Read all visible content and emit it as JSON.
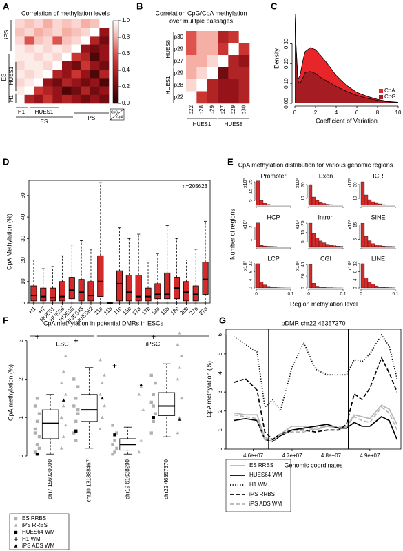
{
  "chart_data": [
    {
      "panel": "A",
      "type": "heatmap",
      "title": "Correlation of methylation levels",
      "row_labels": [
        "iPS",
        "ES",
        "HUES1",
        "H1"
      ],
      "col_labels": [
        "H1",
        "HUES1",
        "ES",
        "iPS"
      ],
      "legend_labels": [
        "CpG",
        "CpA"
      ],
      "matrix": [
        [
          0.9,
          0.85,
          0.9,
          0.8,
          0.9,
          0.85,
          0.9,
          0.8,
          0.85,
          1
        ],
        [
          0.85,
          0.9,
          0.8,
          0.85,
          0.9,
          0.8,
          0.85,
          0.9,
          1,
          0.3
        ],
        [
          0.9,
          0.6,
          0.85,
          0.9,
          0.6,
          0.85,
          0.9,
          1,
          0.4,
          0.2
        ],
        [
          0.95,
          0.9,
          0.95,
          0.9,
          0.95,
          0.9,
          1,
          0.3,
          0.2,
          0.3
        ],
        [
          0.95,
          0.95,
          0.9,
          0.95,
          0.9,
          1,
          0.5,
          0.4,
          0.1,
          0.3
        ],
        [
          0.9,
          0.95,
          0.95,
          0.9,
          1,
          0.3,
          0.2,
          0.5,
          0.3,
          0.2
        ],
        [
          0.95,
          0.9,
          0.95,
          1,
          0.4,
          0.3,
          0.5,
          0.3,
          0.1,
          0.4
        ],
        [
          0.9,
          0.95,
          1,
          0.3,
          0.2,
          0.4,
          0.3,
          0.2,
          0.3,
          0.1
        ],
        [
          0.95,
          1,
          0.5,
          0.4,
          0.3,
          0.1,
          0.2,
          0.4,
          0.2,
          0.3
        ],
        [
          1,
          0.4,
          0.3,
          0.5,
          0.3,
          0.4,
          0.3,
          0.2,
          0.3,
          0.2
        ]
      ],
      "clim": [
        0,
        1
      ],
      "cticks": [
        {
          "value": 0,
          "label": "0.0"
        },
        {
          "value": 0.2,
          "label": "0.2"
        },
        {
          "value": 0.4,
          "label": "0.4"
        },
        {
          "value": 0.6,
          "label": "0.6"
        },
        {
          "value": 0.8,
          "label": "0.8"
        },
        {
          "value": 1,
          "label": "1.0"
        }
      ]
    },
    {
      "panel": "B",
      "type": "heatmap",
      "title": "Correlation CpG/CpA methylation",
      "subtitle": "over mulitple passages",
      "rows": [
        "p30",
        "p29",
        "p27",
        "p29",
        "p28",
        "p22"
      ],
      "columns": [
        "p22",
        "p28",
        "p29",
        "p27",
        "p29",
        "p30"
      ],
      "row_groups": [
        "HUES8",
        "HUES1"
      ],
      "col_groups": [
        "HUES1",
        "HUES8"
      ],
      "matrix": [
        [
          0.6,
          0.8,
          0.8,
          0.4,
          0.5,
          1
        ],
        [
          0.6,
          0.8,
          0.8,
          0.5,
          1,
          0.5
        ],
        [
          0.8,
          0.8,
          0.9,
          1,
          0.4,
          0.3
        ],
        [
          0.8,
          0.9,
          1,
          0.2,
          0.4,
          0.4
        ],
        [
          0.9,
          1,
          0.4,
          0.3,
          0.3,
          0.4
        ],
        [
          1,
          0.5,
          0.4,
          0.3,
          0.3,
          0.4
        ]
      ]
    },
    {
      "panel": "C",
      "type": "density",
      "xlabel": "Coefficient of Variation",
      "ylabel": "Density",
      "x": [
        0,
        0.1,
        0.3,
        0.5,
        0.8,
        1,
        1.5,
        2,
        2.5,
        3,
        4,
        5,
        6,
        7,
        8,
        9,
        10
      ],
      "series": [
        {
          "name": "CpA",
          "color": "#e8262a",
          "values": [
            0.45,
            0.3,
            0.12,
            0.14,
            0.22,
            0.26,
            0.28,
            0.27,
            0.24,
            0.21,
            0.14,
            0.09,
            0.055,
            0.035,
            0.02,
            0.01,
            0.005
          ]
        },
        {
          "name": "CpG",
          "color": "#a51c22",
          "values": [
            0.45,
            0.3,
            0.11,
            0.1,
            0.13,
            0.155,
            0.16,
            0.15,
            0.13,
            0.115,
            0.085,
            0.06,
            0.04,
            0.025,
            0.015,
            0.008,
            0.004
          ]
        }
      ],
      "xlim": [
        0,
        10
      ],
      "xticks": [
        0,
        2,
        4,
        6,
        8,
        10
      ],
      "ylim": [
        0,
        0.45
      ],
      "yticks": [
        {
          "value": 0,
          "label": "0.00"
        },
        {
          "value": 0.1,
          "label": "0.10"
        },
        {
          "value": 0.2,
          "label": "0.20"
        },
        {
          "value": 0.3,
          "label": "0.30"
        }
      ],
      "legend": "bottom-right"
    },
    {
      "panel": "D",
      "type": "box",
      "ylabel": "CpA Methylation (%)",
      "annotation": "n=205623",
      "categories": [
        "H1",
        "H7",
        "HUES1",
        "HUES6",
        "HUES8",
        "HUES45",
        "HUES62",
        "11a",
        "11b",
        "11c",
        "15b",
        "17a",
        "17b",
        "18a",
        "18b",
        "18c",
        "20b",
        "27b",
        "27e"
      ],
      "groups": [
        "ESC",
        "iPSC"
      ],
      "boxes": [
        [
          0,
          1,
          3.5,
          8,
          20
        ],
        [
          0,
          1,
          3,
          7,
          16
        ],
        [
          0,
          1,
          2.5,
          7,
          17
        ],
        [
          0,
          1,
          3,
          10,
          22
        ],
        [
          0,
          2,
          6,
          12,
          27
        ],
        [
          0,
          1,
          5,
          11,
          29
        ],
        [
          0,
          1,
          3.5,
          10,
          25
        ],
        [
          0,
          3,
          10,
          22,
          56
        ],
        [
          0,
          0,
          0,
          0,
          0.5
        ],
        [
          0,
          1,
          9,
          15,
          35
        ],
        [
          0,
          1,
          5,
          13,
          30
        ],
        [
          0,
          1,
          3,
          13,
          32
        ],
        [
          0,
          1,
          3,
          7,
          20
        ],
        [
          0,
          2,
          4,
          9,
          23
        ],
        [
          0,
          2,
          4,
          14,
          36
        ],
        [
          0,
          2,
          7,
          12,
          30
        ],
        [
          0,
          1,
          5,
          10,
          20
        ],
        [
          0,
          1,
          4,
          8,
          25
        ],
        [
          0,
          4,
          11,
          19,
          38
        ]
      ],
      "color": "#d42a2a",
      "ylim": [
        0,
        57
      ],
      "yticks": [
        0,
        10,
        20,
        30,
        40,
        50
      ]
    },
    {
      "panel": "E",
      "type": "histogram",
      "title": "CpA methylation distribution for various genomic regions",
      "ylabel": "Number of regions",
      "xlabel": "Region methylation level",
      "bins": [
        0,
        0.01,
        0.02,
        0.03,
        0.04,
        0.05,
        0.06,
        0.07,
        0.08,
        0.09,
        0.1
      ],
      "xlim": [
        0,
        0.1
      ],
      "xticks": [
        0,
        0.1
      ],
      "color": "#d42a2a",
      "panels": [
        {
          "name": "Promoter",
          "multiplier": "x10³",
          "ylim": [
            0,
            28
          ],
          "yticks": [
            5,
            15,
            25
          ],
          "counts": [
            26,
            5,
            2,
            1,
            0.6,
            0.3,
            0.2,
            0.1,
            0.05,
            0.02
          ]
        },
        {
          "name": "Exon",
          "multiplier": "x10³",
          "ylim": [
            0,
            38
          ],
          "yticks": [
            10,
            30
          ],
          "counts": [
            30,
            12,
            7,
            4,
            2.5,
            1.5,
            1,
            0.6,
            0.3,
            0.2
          ]
        },
        {
          "name": "ICR",
          "multiplier": "x10³",
          "ylim": [
            0,
            38
          ],
          "yticks": [
            10,
            30
          ],
          "counts": [
            34,
            15,
            8,
            5,
            3,
            2,
            1,
            0.5,
            0.3,
            0.2
          ]
        },
        {
          "name": "HCP",
          "multiplier": "x10³",
          "ylim": [
            0,
            4
          ],
          "yticks": [
            1,
            3
          ],
          "counts": [
            3.6,
            0.2,
            0.1,
            0.05,
            0.02,
            0.01,
            0,
            0,
            0,
            0
          ]
        },
        {
          "name": "Intron",
          "multiplier": "x10³",
          "ylim": [
            0,
            28
          ],
          "yticks": [
            5,
            15,
            25
          ],
          "counts": [
            25,
            14,
            9,
            6,
            4,
            2.5,
            1.5,
            1,
            0.5,
            0.3
          ]
        },
        {
          "name": "SINE",
          "multiplier": "x10³",
          "ylim": [
            0,
            18
          ],
          "yticks": [
            5,
            15
          ],
          "counts": [
            16,
            7,
            4,
            2,
            1.2,
            0.7,
            0.4,
            0.2,
            0.1,
            0.05
          ]
        },
        {
          "name": "LCP",
          "multiplier": "x10²",
          "ylim": [
            0,
            13
          ],
          "yticks": [
            0,
            4,
            8,
            12
          ],
          "counts": [
            12,
            3,
            1.5,
            0.8,
            0.4,
            0.2,
            0.1,
            0.05,
            0.02,
            0.01
          ]
        },
        {
          "name": "CGI",
          "multiplier": "x10²",
          "ylim": [
            0,
            45
          ],
          "yticks": [
            0,
            20,
            40
          ],
          "counts": [
            40,
            8,
            3,
            1.5,
            0.8,
            0.4,
            0.2,
            0.1,
            0.05,
            0.02
          ]
        },
        {
          "name": "LINE",
          "multiplier": "x10³",
          "ylim": [
            0,
            13
          ],
          "yticks": [
            0,
            4,
            8,
            12
          ],
          "counts": [
            12,
            5,
            3,
            1.8,
            1,
            0.6,
            0.3,
            0.2,
            0.1,
            0.05
          ]
        }
      ]
    },
    {
      "panel": "F",
      "type": "box",
      "title": "CpA methylation in potential DMRs in ESCs",
      "ylabel": "CpA methylation (%)",
      "categories": [
        "chr7 156920000",
        "chr10 131888467",
        "chr19 61638290",
        "chr22 46357370"
      ],
      "boxes": [
        [
          0.05,
          0.45,
          0.85,
          1.2,
          1.6
        ],
        [
          0.2,
          0.9,
          1.2,
          1.6,
          2.3
        ],
        [
          0.05,
          0.15,
          0.3,
          0.45,
          0.75
        ],
        [
          0.5,
          1.05,
          1.3,
          1.65,
          2.4
        ]
      ],
      "color": "#ffffff",
      "ylim": [
        0,
        3.3
      ],
      "yticks": [
        0,
        1,
        2,
        3
      ],
      "points": [
        {
          "name": "ES RRBS",
          "marker": "square",
          "color": "#b0b0b0",
          "values": [
            [
              0.1,
              0.3,
              0.5,
              0.7,
              0.9,
              1.1,
              1.3,
              1.5,
              0.2,
              0.6
            ],
            [
              0.6,
              0.9,
              1.1,
              1.3,
              1.5,
              1.8,
              2.0,
              0.4,
              1.2
            ],
            [
              0.05,
              0.1,
              0.2,
              0.3,
              0.4,
              0.6,
              0.8
            ],
            [
              0.6,
              0.9,
              1.1,
              1.4,
              1.6,
              1.9,
              2.1,
              1.3
            ]
          ]
        },
        {
          "name": "iPS RRBS",
          "marker": "triangle",
          "color": "#b0b0b0",
          "values": [
            [
              0.2,
              0.5,
              0.8,
              1.0,
              1.3,
              1.6,
              1.9,
              2.2,
              2.6
            ],
            [
              0.7,
              1.0,
              1.3,
              1.6,
              1.9,
              2.1,
              2.5
            ],
            [
              0.1,
              0.4,
              1.2,
              1.6,
              1.8
            ],
            [
              0.6,
              1.0,
              1.5,
              2.0,
              2.3,
              2.6,
              2.9,
              3.2
            ]
          ]
        },
        {
          "name": "HUES64 WM",
          "marker": "square",
          "color": "#000000",
          "values": [
            [
              0.05
            ],
            [
              0.65
            ],
            [
              0.55
            ],
            [
              1.0
            ]
          ]
        },
        {
          "name": "H1 WM",
          "marker": "plus",
          "color": "#000000",
          "values": [
            [
              3.1
            ],
            [
              3.0
            ],
            [
              2.35
            ],
            [
              3.1
            ]
          ]
        },
        {
          "name": "iPS ADS WM",
          "marker": "triangle",
          "color": "#000000",
          "values": [
            [
              1.45
            ],
            [
              1.5
            ],
            [
              1.85
            ],
            [
              0.95
            ]
          ]
        }
      ]
    },
    {
      "panel": "G",
      "type": "line",
      "title": "pDMR chr22 46357370",
      "xlabel": "Genomic coordinates",
      "ylabel": "CpA methylation (%)",
      "x": [
        45500000,
        45800000,
        46100000,
        46300000,
        46500000,
        46700000,
        47000000,
        47300000,
        47600000,
        47900000,
        48200000,
        48400000,
        48600000,
        48800000,
        49000000,
        49300000,
        49500000,
        49700000
      ],
      "series": [
        {
          "name": "ES RRBS",
          "color": "#b5b5b5",
          "style": "solid",
          "values": [
            1.9,
            1.8,
            1.8,
            0.6,
            0.5,
            0.8,
            1.2,
            1.2,
            1.0,
            1.2,
            1.1,
            1.2,
            1.8,
            1.7,
            1.6,
            2.3,
            2.1,
            1.3
          ]
        },
        {
          "name": "HUES64 WM",
          "color": "#000000",
          "style": "solid",
          "values": [
            1.5,
            1.6,
            1.5,
            0.5,
            0.4,
            0.7,
            1.0,
            1.1,
            1.2,
            1.3,
            1.1,
            1.1,
            1.4,
            1.2,
            1.2,
            1.7,
            1.5,
            0.5
          ]
        },
        {
          "name": "H1 WM",
          "color": "#000000",
          "style": "dotted",
          "values": [
            5.9,
            5.5,
            5.1,
            2.2,
            2.6,
            2.0,
            4.3,
            5.6,
            4.2,
            3.9,
            3.9,
            3.9,
            4.7,
            4.6,
            5.0,
            6.0,
            5.4,
            3.7
          ]
        },
        {
          "name": "iPS RRBS",
          "color": "#000000",
          "style": "dashed",
          "values": [
            3.5,
            3.7,
            3.1,
            0.9,
            0.5,
            0.8,
            1.0,
            1.0,
            0.9,
            1.0,
            1.0,
            1.3,
            2.9,
            2.6,
            3.2,
            4.8,
            4.0,
            3.0
          ]
        },
        {
          "name": "iPS ADS WM",
          "color": "#b5b5b5",
          "style": "dashed",
          "values": [
            1.8,
            1.7,
            1.6,
            0.5,
            0.4,
            0.8,
            0.9,
            0.9,
            1.1,
            1.2,
            1.2,
            1.2,
            1.7,
            1.5,
            1.4,
            2.2,
            1.9,
            1.0
          ]
        }
      ],
      "vlines": [
        46400000,
        48450000
      ],
      "xlim": [
        45300000,
        49800000
      ],
      "xticks": [
        {
          "value": 46000000,
          "label": "4.6e+07"
        },
        {
          "value": 47000000,
          "label": "4.7e+07"
        },
        {
          "value": 48000000,
          "label": "4.8e+07"
        },
        {
          "value": 49000000,
          "label": "4.9e+07"
        }
      ],
      "ylim": [
        0,
        6.3
      ],
      "yticks": [
        0,
        1,
        2,
        3,
        4,
        5,
        6
      ]
    }
  ]
}
